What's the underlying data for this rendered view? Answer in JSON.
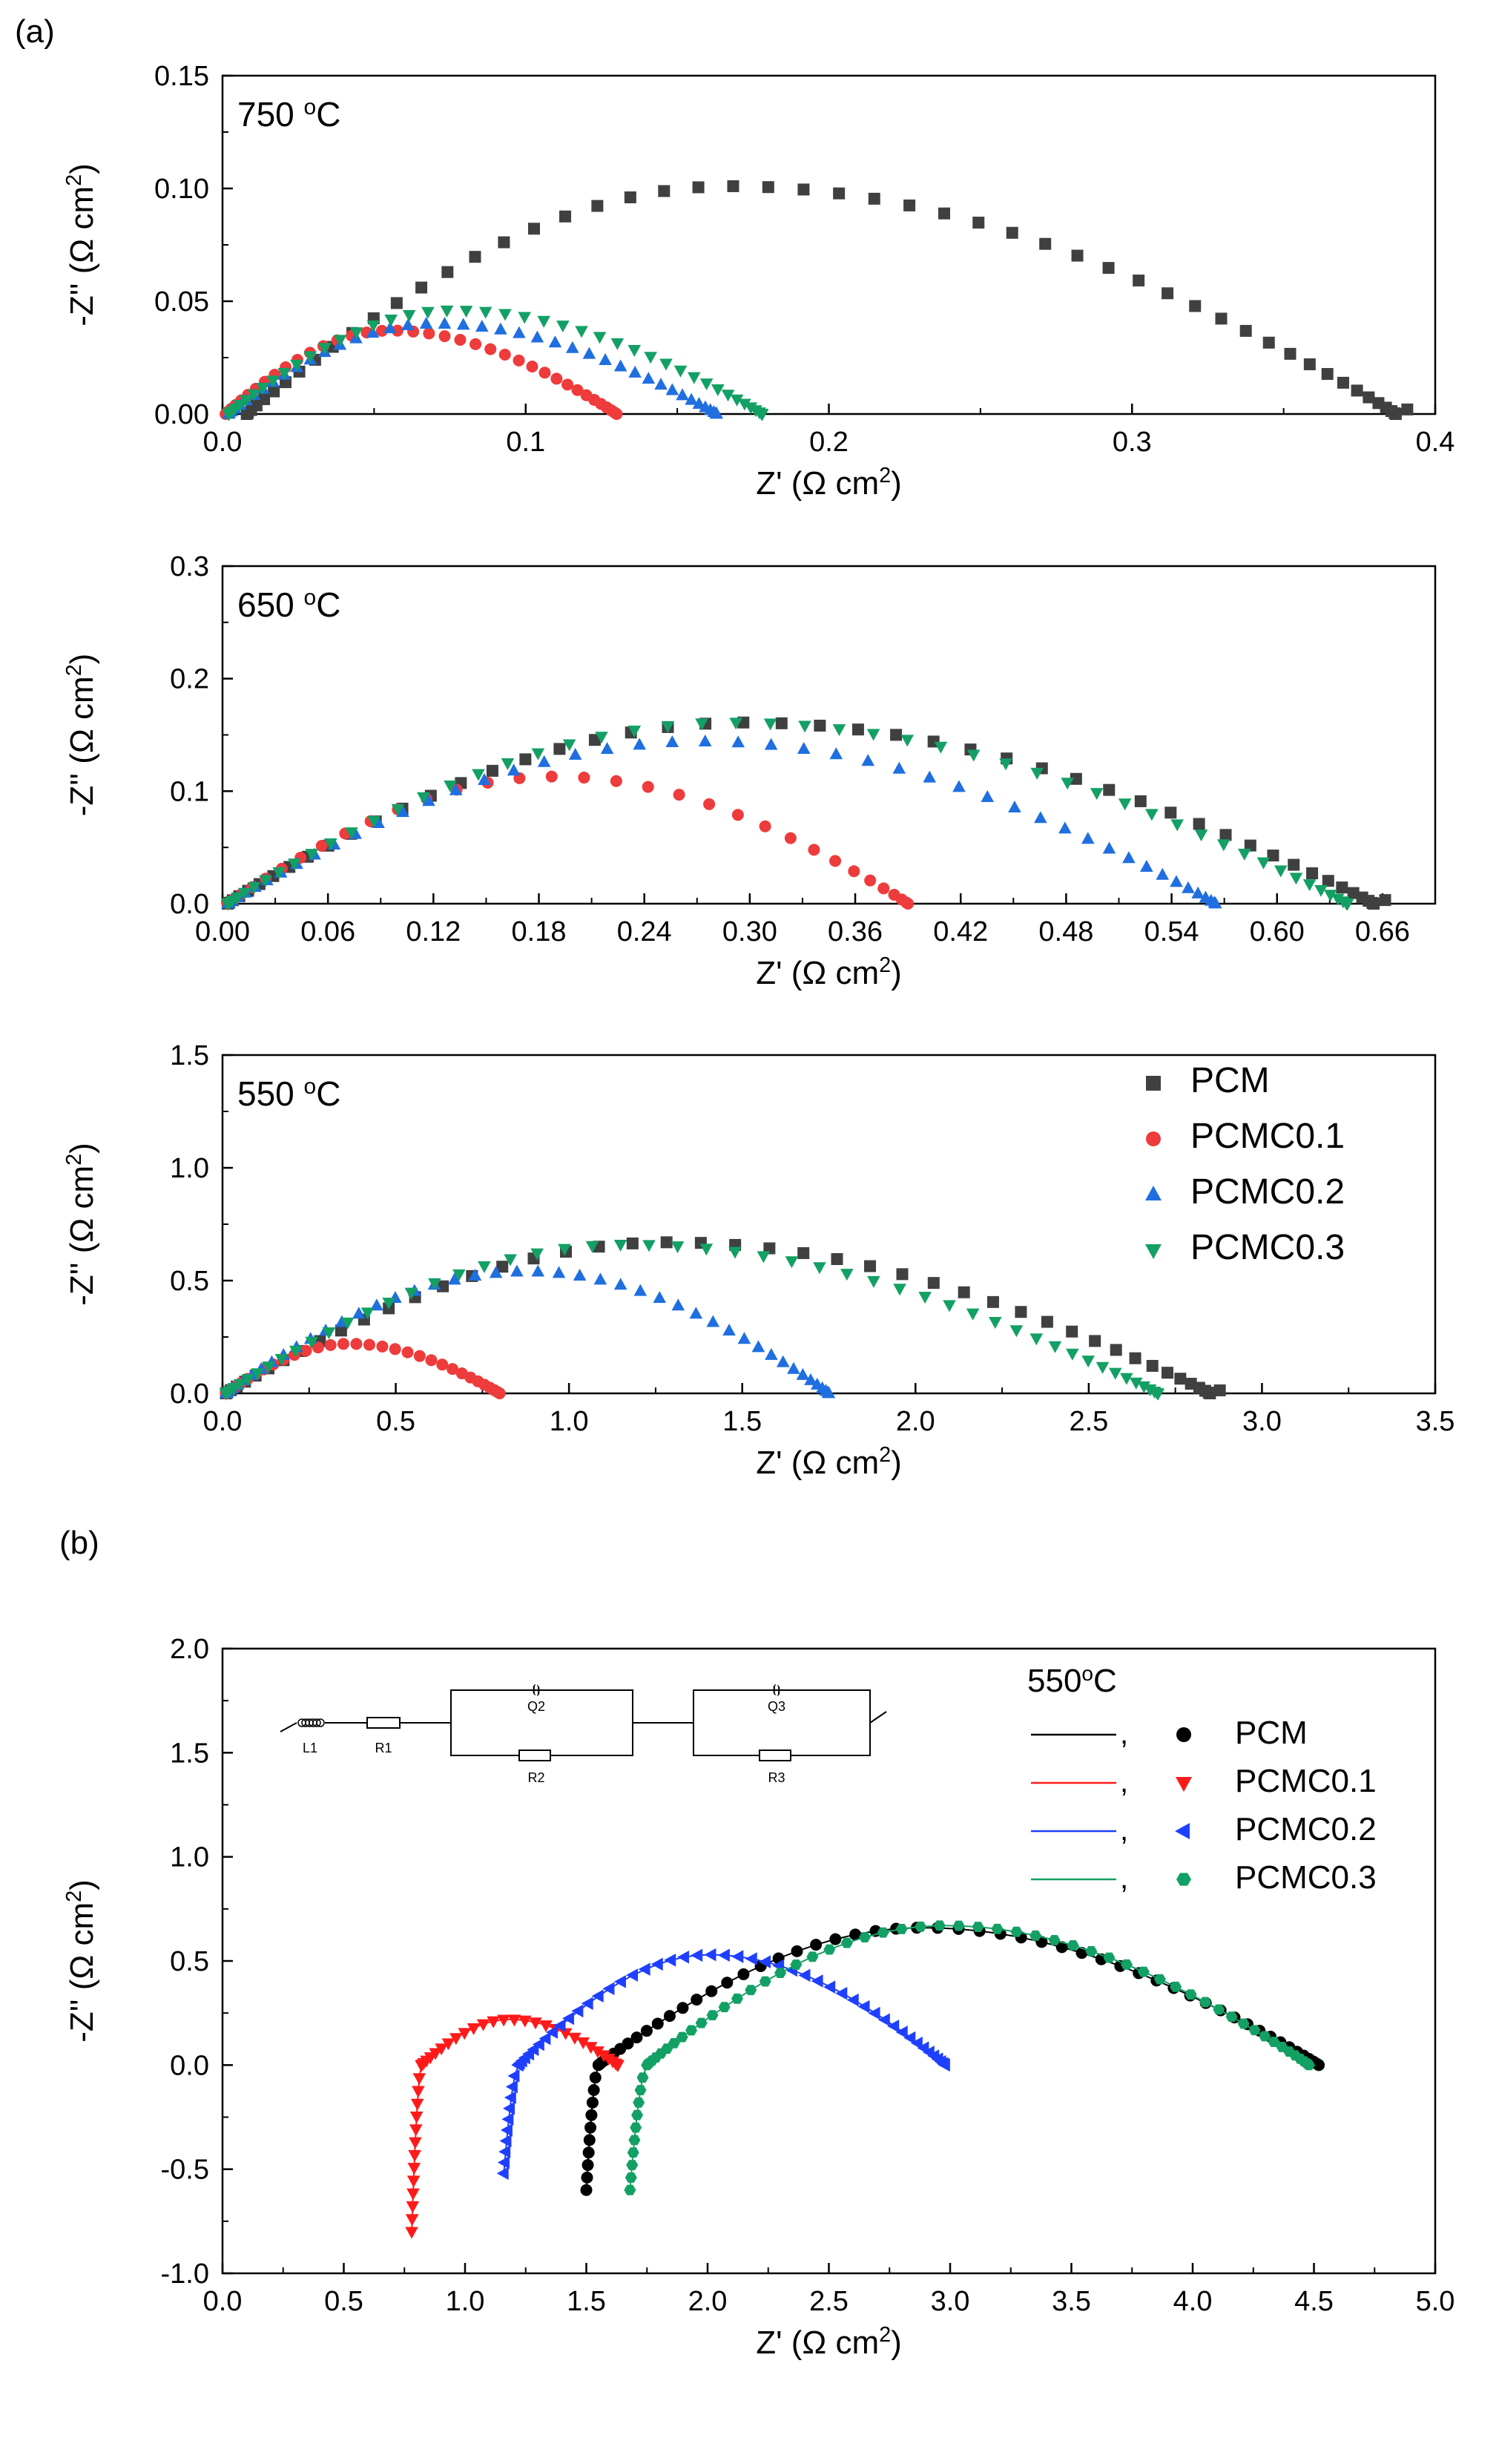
{
  "figure": {
    "panel_a_label": "(a)",
    "panel_b_label": "(b)"
  },
  "colors": {
    "PCM": "#404040",
    "PCMC0.1": "#ee3b3b",
    "PCMC0.2": "#1f6fe0",
    "PCMC0.3": "#13a064",
    "PCM_b": "#000000",
    "PCMC0.1_b": "#ff1a1a",
    "PCMC0.2_b": "#1f3fff",
    "PCMC0.3_b": "#13a064"
  },
  "chart_data": [
    {
      "id": "a750",
      "type": "scatter",
      "title": "750 °C",
      "title_main": "750 ",
      "title_sup": "o",
      "title_unit": "C",
      "xlabel": "Z' (Ω cm2)",
      "ylabel": "-Z'' (Ω cm2)",
      "xlim": [
        0,
        0.4
      ],
      "ylim": [
        0,
        0.15
      ],
      "xticks": [
        0,
        0.1,
        0.2,
        0.3,
        0.4
      ],
      "xtick_labels": [
        "0.0",
        "0.1",
        "0.2",
        "0.3",
        "0.4"
      ],
      "yticks": [
        0,
        0.05,
        0.1,
        0.15
      ],
      "ytick_labels": [
        "0.00",
        "0.05",
        "0.10",
        "0.15"
      ],
      "series": [
        {
          "name": "PCM",
          "marker": "square",
          "shape": "arc",
          "start": 0.008,
          "end": 0.387,
          "peak": 0.101,
          "skew": 0.42,
          "n": 52,
          "tail": "up"
        },
        {
          "name": "PCMC0.1",
          "marker": "circle",
          "shape": "arc",
          "start": 0.001,
          "end": 0.13,
          "peak": 0.037,
          "skew": 0.42,
          "n": 40,
          "tail": "flat"
        },
        {
          "name": "PCMC0.2",
          "marker": "triangle-up",
          "shape": "arc",
          "start": 0.002,
          "end": 0.163,
          "peak": 0.04,
          "skew": 0.42,
          "n": 42,
          "tail": "flat"
        },
        {
          "name": "PCMC0.3",
          "marker": "triangle-down",
          "shape": "arc",
          "start": 0.002,
          "end": 0.178,
          "peak": 0.046,
          "skew": 0.42,
          "n": 44,
          "tail": "flat"
        }
      ]
    },
    {
      "id": "a650",
      "type": "scatter",
      "title": "650 °C",
      "title_main": "650 ",
      "title_sup": "o",
      "title_unit": "C",
      "xlabel": "Z' (Ω cm2)",
      "ylabel": "-Z'' (Ω cm2)",
      "xlim": [
        0,
        0.69
      ],
      "ylim": [
        0,
        0.3
      ],
      "xticks": [
        0,
        0.06,
        0.12,
        0.18,
        0.24,
        0.3,
        0.36,
        0.42,
        0.48,
        0.54,
        0.6,
        0.66
      ],
      "xtick_labels": [
        "0.00",
        "0.06",
        "0.12",
        "0.18",
        "0.24",
        "0.30",
        "0.36",
        "0.42",
        "0.48",
        "0.54",
        "0.60",
        "0.66"
      ],
      "yticks": [
        0,
        0.1,
        0.2,
        0.3
      ],
      "ytick_labels": [
        "0.0",
        "0.1",
        "0.2",
        "0.3"
      ],
      "series": [
        {
          "name": "PCM",
          "marker": "square",
          "shape": "arc",
          "start": 0.003,
          "end": 0.655,
          "peak": 0.161,
          "skew": 0.45,
          "n": 48,
          "tail": "up"
        },
        {
          "name": "PCMC0.1",
          "marker": "circle",
          "shape": "arc",
          "start": 0.003,
          "end": 0.39,
          "peak": 0.113,
          "skew": 0.48,
          "n": 34,
          "tail": "flat"
        },
        {
          "name": "PCMC0.2",
          "marker": "triangle-up",
          "shape": "arc",
          "start": 0.003,
          "end": 0.565,
          "peak": 0.144,
          "skew": 0.48,
          "n": 48,
          "tail": "flat"
        },
        {
          "name": "PCMC0.3",
          "marker": "triangle-down",
          "shape": "arc",
          "start": 0.003,
          "end": 0.64,
          "peak": 0.161,
          "skew": 0.45,
          "n": 52,
          "tail": "flat"
        }
      ]
    },
    {
      "id": "a550",
      "type": "scatter",
      "title": "550 °C",
      "title_main": "550 ",
      "title_sup": "o",
      "title_unit": "C",
      "xlabel": "Z' (Ω cm2)",
      "ylabel": "-Z'' (Ω cm2)",
      "xlim": [
        0,
        3.5
      ],
      "ylim": [
        0,
        1.5
      ],
      "xticks": [
        0,
        0.5,
        1.0,
        1.5,
        2.0,
        2.5,
        3.0,
        3.5
      ],
      "xtick_labels": [
        "0.0",
        "0.5",
        "1.0",
        "1.5",
        "2.0",
        "2.5",
        "3.0",
        "3.5"
      ],
      "yticks": [
        0,
        0.5,
        1.0,
        1.5
      ],
      "ytick_labels": [
        "0.0",
        "0.5",
        "1.0",
        "1.5"
      ],
      "legend": [
        "PCM",
        "PCMC0.1",
        "PCMC0.2",
        "PCMC0.3"
      ],
      "legend_position": "top-right",
      "series": [
        {
          "name": "PCM",
          "marker": "square",
          "shape": "arc",
          "start": 0.01,
          "end": 2.85,
          "peak": 0.67,
          "skew": 0.45,
          "n": 46,
          "tail": "up"
        },
        {
          "name": "PCMC0.1",
          "marker": "circle",
          "shape": "arc",
          "start": 0.01,
          "end": 0.8,
          "peak": 0.22,
          "skew": 0.45,
          "n": 34,
          "tail": "flat"
        },
        {
          "name": "PCMC0.2",
          "marker": "triangle-up",
          "shape": "arc",
          "start": 0.01,
          "end": 1.75,
          "peak": 0.54,
          "skew": 0.5,
          "n": 46,
          "tail": "flat"
        },
        {
          "name": "PCMC0.3",
          "marker": "triangle-down",
          "shape": "arc",
          "start": 0.01,
          "end": 2.7,
          "peak": 0.66,
          "skew": 0.43,
          "n": 52,
          "tail": "flat"
        }
      ]
    },
    {
      "id": "b",
      "type": "scatter",
      "title": "550°C",
      "title_main": "550",
      "title_sup": "o",
      "title_unit": "C",
      "xlabel": "Z' (Ω cm2)",
      "ylabel": "-Z'' (Ω cm2)",
      "xlim": [
        0,
        5.0
      ],
      "ylim": [
        -1.0,
        2.0
      ],
      "xticks": [
        0,
        0.5,
        1.0,
        1.5,
        2.0,
        2.5,
        3.0,
        3.5,
        4.0,
        4.5,
        5.0
      ],
      "xtick_labels": [
        "0.0",
        "0.5",
        "1.0",
        "1.5",
        "2.0",
        "2.5",
        "3.0",
        "3.5",
        "4.0",
        "4.5",
        "5.0"
      ],
      "yticks": [
        -1.0,
        -0.5,
        0,
        0.5,
        1.0,
        1.5,
        2.0
      ],
      "ytick_labels": [
        "-1.0",
        "-0.5",
        "0.0",
        "0.5",
        "1.0",
        "1.5",
        "2.0"
      ],
      "legend": [
        "PCM",
        "PCMC0.1",
        "PCMC0.2",
        "PCMC0.3"
      ],
      "legend_separator": ",",
      "legend_position": "top-right",
      "circuit": {
        "L1": "L1",
        "R1": "R1",
        "Q2": "Q2",
        "R2": "R2",
        "Q3": "Q3",
        "R3": "R3"
      },
      "series": [
        {
          "name": "PCM",
          "marker": "circle",
          "shape": "arc_tail",
          "start": 1.55,
          "end": 4.52,
          "peak": 0.66,
          "skew": 0.45,
          "n": 55,
          "tail_x": 1.5,
          "tail_y": -0.6,
          "tail_n": 10,
          "fit": true
        },
        {
          "name": "PCMC0.1",
          "marker": "triangle-down",
          "shape": "arc_tail",
          "start": 0.82,
          "end": 1.63,
          "peak": 0.22,
          "skew": 0.45,
          "n": 30,
          "tail_x": 0.78,
          "tail_y": -0.8,
          "tail_n": 13,
          "fit": true
        },
        {
          "name": "PCMC0.2",
          "marker": "triangle-left",
          "shape": "arc_tail",
          "start": 1.22,
          "end": 2.98,
          "peak": 0.53,
          "skew": 0.45,
          "n": 50,
          "tail_x": 1.16,
          "tail_y": -0.52,
          "tail_n": 10,
          "fit": true
        },
        {
          "name": "PCMC0.3",
          "marker": "hexagon",
          "shape": "arc_tail",
          "start": 1.75,
          "end": 4.48,
          "peak": 0.67,
          "skew": 0.45,
          "n": 55,
          "tail_x": 1.68,
          "tail_y": -0.6,
          "tail_n": 10,
          "fit": true
        }
      ]
    }
  ]
}
